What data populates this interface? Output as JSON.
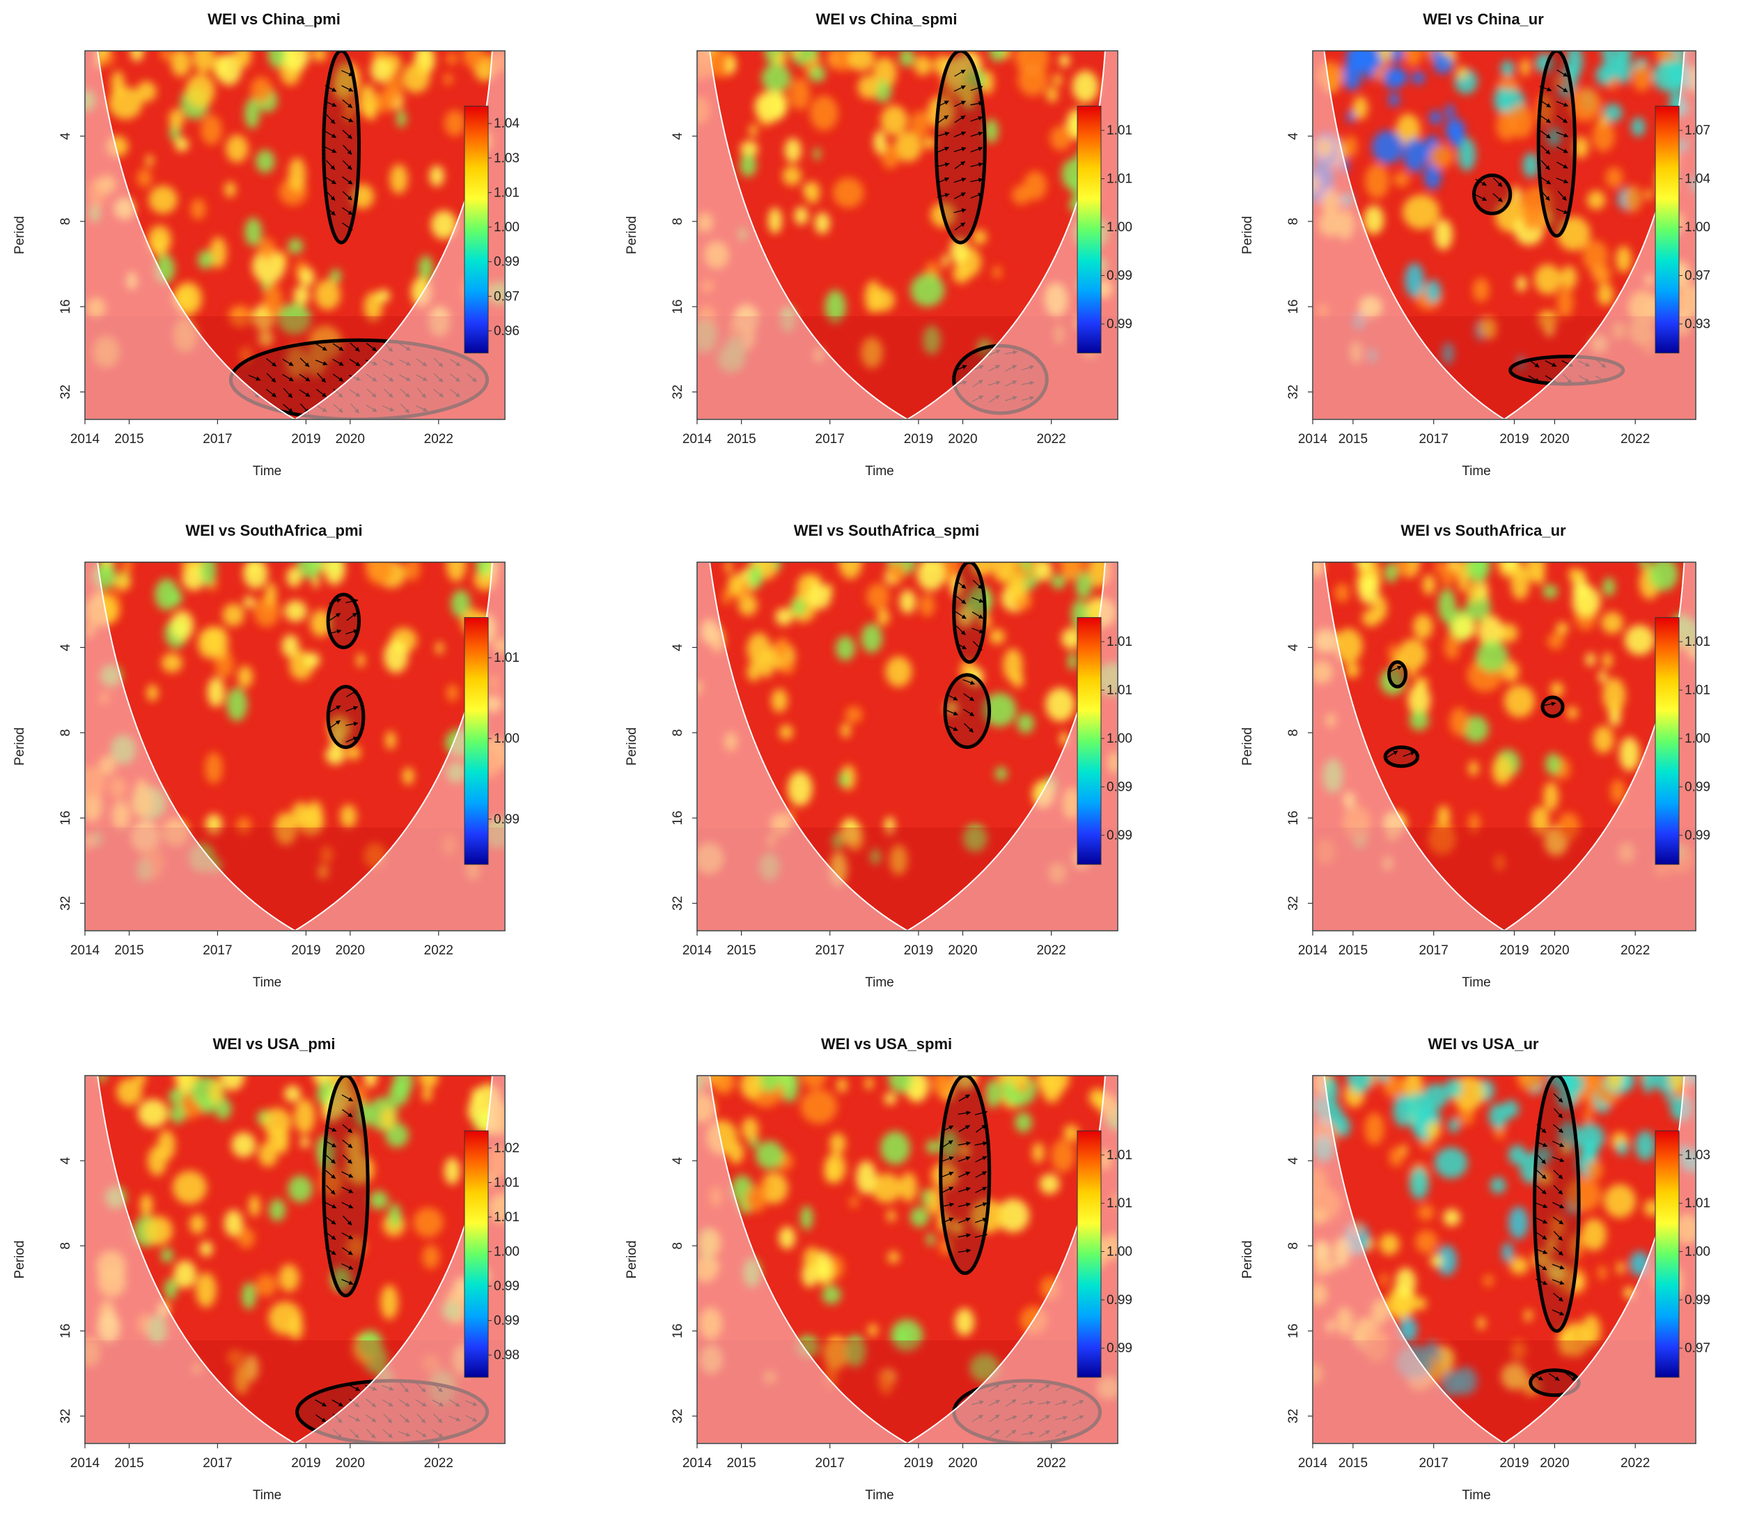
{
  "figure": {
    "colors": {
      "map_base": "#e8281a",
      "coi_fill": "#ffb8b8",
      "contour": "#000000",
      "colorbar_stops": [
        "#e60000",
        "#ff6600",
        "#ffd000",
        "#ffff33",
        "#66ff66",
        "#00e5d0",
        "#00a6ff",
        "#1e3cff",
        "#000099"
      ]
    }
  },
  "chart_data": [
    {
      "type": "heatmap",
      "title": "WEI  vs  China_pmi",
      "xlabel": "Time",
      "ylabel": "Period",
      "x_ticks": [
        "2014",
        "2015",
        "2017",
        "2019",
        "2020",
        "2022"
      ],
      "y_ticks": [
        "4",
        "8",
        "16",
        "32"
      ],
      "colorbar_ticks": [
        "1.04",
        "1.03",
        "1.01",
        "1.00",
        "0.99",
        "0.97",
        "0.96"
      ],
      "significant_regions": [
        {
          "time_start": 2019.4,
          "time_end": 2020.2,
          "period_start": 2,
          "period_end": 9.5
        },
        {
          "time_start": 2017.3,
          "time_end": 2023.1,
          "period_start": 21,
          "period_end": 40
        }
      ]
    },
    {
      "type": "heatmap",
      "title": "WEI  vs  China_spmi",
      "xlabel": "Time",
      "ylabel": "Period",
      "x_ticks": [
        "2014",
        "2015",
        "2017",
        "2019",
        "2020",
        "2022"
      ],
      "y_ticks": [
        "4",
        "8",
        "16",
        "32"
      ],
      "colorbar_ticks": [
        "1.01",
        "1.01",
        "1.00",
        "0.99",
        "0.99"
      ],
      "significant_regions": [
        {
          "time_start": 2019.4,
          "time_end": 2020.5,
          "period_start": 2,
          "period_end": 9.5
        },
        {
          "time_start": 2019.8,
          "time_end": 2021.9,
          "period_start": 22,
          "period_end": 38
        }
      ]
    },
    {
      "type": "heatmap",
      "title": "WEI  vs  China_ur",
      "xlabel": "Time",
      "ylabel": "Period",
      "x_ticks": [
        "2014",
        "2015",
        "2017",
        "2019",
        "2020",
        "2022"
      ],
      "y_ticks": [
        "4",
        "8",
        "16",
        "32"
      ],
      "colorbar_ticks": [
        "1.07",
        "1.04",
        "1.00",
        "0.97",
        "0.93"
      ],
      "significant_regions": [
        {
          "time_start": 2019.6,
          "time_end": 2020.5,
          "period_start": 2,
          "period_end": 9
        },
        {
          "time_start": 2018.0,
          "time_end": 2018.9,
          "period_start": 5.5,
          "period_end": 7.5
        },
        {
          "time_start": 2018.9,
          "time_end": 2021.7,
          "period_start": 24,
          "period_end": 30
        }
      ]
    },
    {
      "type": "heatmap",
      "title": "WEI  vs  SouthAfrica_pmi",
      "xlabel": "Time",
      "ylabel": "Period",
      "x_ticks": [
        "2014",
        "2015",
        "2017",
        "2019",
        "2020",
        "2022"
      ],
      "y_ticks": [
        "4",
        "8",
        "16",
        "32"
      ],
      "colorbar_ticks": [
        "1.01",
        "1.00",
        "0.99"
      ],
      "significant_regions": [
        {
          "time_start": 2019.5,
          "time_end": 2020.3,
          "period_start": 5.5,
          "period_end": 9
        },
        {
          "time_start": 2019.5,
          "time_end": 2020.2,
          "period_start": 2.6,
          "period_end": 4
        }
      ]
    },
    {
      "type": "heatmap",
      "title": "WEI  vs  SouthAfrica_spmi",
      "xlabel": "Time",
      "ylabel": "Period",
      "x_ticks": [
        "2014",
        "2015",
        "2017",
        "2019",
        "2020",
        "2022"
      ],
      "y_ticks": [
        "4",
        "8",
        "16",
        "32"
      ],
      "colorbar_ticks": [
        "1.01",
        "1.01",
        "1.00",
        "0.99",
        "0.99"
      ],
      "significant_regions": [
        {
          "time_start": 2019.6,
          "time_end": 2020.6,
          "period_start": 5,
          "period_end": 9
        },
        {
          "time_start": 2019.8,
          "time_end": 2020.5,
          "period_start": 2,
          "period_end": 4.5
        }
      ]
    },
    {
      "type": "heatmap",
      "title": "WEI  vs  SouthAfrica_ur",
      "xlabel": "Time",
      "ylabel": "Period",
      "x_ticks": [
        "2014",
        "2015",
        "2017",
        "2019",
        "2020",
        "2022"
      ],
      "y_ticks": [
        "4",
        "8",
        "16",
        "32"
      ],
      "colorbar_ticks": [
        "1.01",
        "1.01",
        "1.00",
        "0.99",
        "0.99"
      ],
      "significant_regions": [
        {
          "time_start": 2015.9,
          "time_end": 2016.3,
          "period_start": 4.5,
          "period_end": 5.5
        },
        {
          "time_start": 2019.7,
          "time_end": 2020.2,
          "period_start": 6,
          "period_end": 7
        },
        {
          "time_start": 2015.8,
          "time_end": 2016.6,
          "period_start": 9,
          "period_end": 10.5
        }
      ]
    },
    {
      "type": "heatmap",
      "title": "WEI  vs  USA_pmi",
      "xlabel": "Time",
      "ylabel": "Period",
      "x_ticks": [
        "2014",
        "2015",
        "2017",
        "2019",
        "2020",
        "2022"
      ],
      "y_ticks": [
        "4",
        "8",
        "16",
        "32"
      ],
      "colorbar_ticks": [
        "1.02",
        "1.01",
        "1.01",
        "1.00",
        "0.99",
        "0.99",
        "0.98"
      ],
      "significant_regions": [
        {
          "time_start": 2019.4,
          "time_end": 2020.4,
          "period_start": 2,
          "period_end": 12
        },
        {
          "time_start": 2018.8,
          "time_end": 2023.1,
          "period_start": 24,
          "period_end": 40
        }
      ]
    },
    {
      "type": "heatmap",
      "title": "WEI  vs  USA_spmi",
      "xlabel": "Time",
      "ylabel": "Period",
      "x_ticks": [
        "2014",
        "2015",
        "2017",
        "2019",
        "2020",
        "2022"
      ],
      "y_ticks": [
        "4",
        "8",
        "16",
        "32"
      ],
      "colorbar_ticks": [
        "1.01",
        "1.01",
        "1.00",
        "0.99",
        "0.99"
      ],
      "significant_regions": [
        {
          "time_start": 2019.5,
          "time_end": 2020.6,
          "period_start": 2,
          "period_end": 10
        },
        {
          "time_start": 2019.8,
          "time_end": 2023.1,
          "period_start": 24,
          "period_end": 40
        }
      ]
    },
    {
      "type": "heatmap",
      "title": "WEI  vs  USA_ur",
      "xlabel": "Time",
      "ylabel": "Period",
      "x_ticks": [
        "2014",
        "2015",
        "2017",
        "2019",
        "2020",
        "2022"
      ],
      "y_ticks": [
        "4",
        "8",
        "16",
        "32"
      ],
      "colorbar_ticks": [
        "1.03",
        "1.01",
        "1.00",
        "0.99",
        "0.97"
      ],
      "significant_regions": [
        {
          "time_start": 2019.5,
          "time_end": 2020.6,
          "period_start": 2,
          "period_end": 16
        },
        {
          "time_start": 2019.4,
          "time_end": 2020.6,
          "period_start": 22,
          "period_end": 27
        }
      ]
    }
  ]
}
